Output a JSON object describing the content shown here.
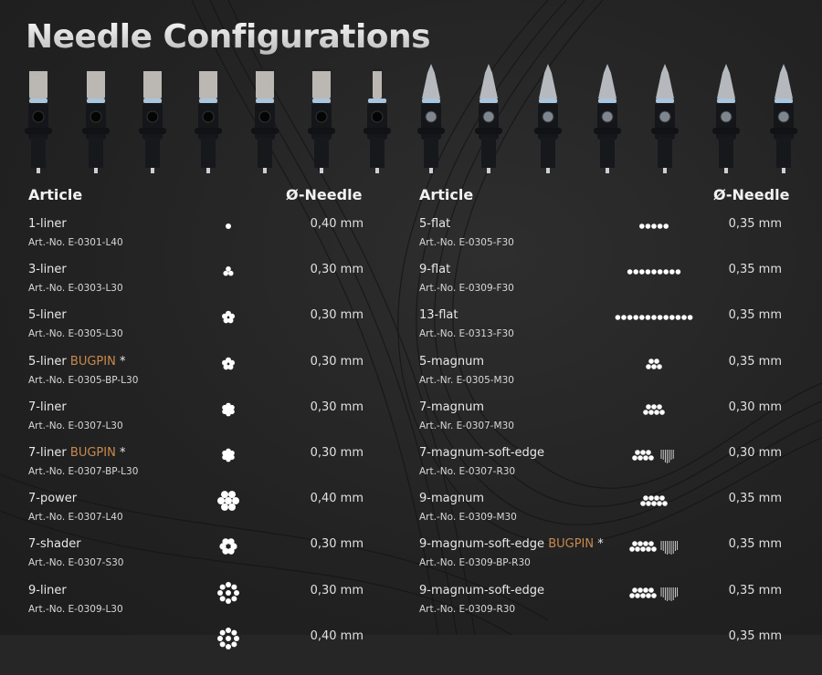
{
  "title": "Needle Configurations",
  "colors": {
    "accent_bugpin": "#c98a4e",
    "background": "#262626",
    "text": "#e8e8e8"
  },
  "cartridges": [
    "round-cartridge",
    "round-cartridge",
    "round-cartridge",
    "round-cartridge",
    "round-cartridge",
    "round-cartridge",
    "round-cartridge",
    "flat-cartridge",
    "flat-cartridge",
    "flat-cartridge",
    "flat-cartridge",
    "flat-cartridge",
    "flat-cartridge",
    "flat-cartridge"
  ],
  "left": {
    "header_article": "Article",
    "header_needle": "Ø-Needle",
    "rows": [
      {
        "name": "1-liner",
        "bugpin": "",
        "star": "",
        "art": "Art.-No. E-0301-L40",
        "mm": "0,40 mm",
        "icon": "liner-1"
      },
      {
        "name": "3-liner",
        "bugpin": "",
        "star": "",
        "art": "Art.-No. E-0303-L30",
        "mm": "0,30 mm",
        "icon": "liner-3"
      },
      {
        "name": "5-liner",
        "bugpin": "",
        "star": "",
        "art": "Art.-No. E-0305-L30",
        "mm": "0,30 mm",
        "icon": "liner-5"
      },
      {
        "name": "5-liner",
        "bugpin": "BUGPIN",
        "star": "*",
        "art": "Art.-No. E-0305-BP-L30",
        "mm": "0,30 mm",
        "icon": "liner-5"
      },
      {
        "name": "7-liner",
        "bugpin": "",
        "star": "",
        "art": "Art.-No. E-0307-L30",
        "mm": "0,30 mm",
        "icon": "liner-7"
      },
      {
        "name": "7-liner",
        "bugpin": "BUGPIN",
        "star": "*",
        "art": "Art.-No. E-0307-BP-L30",
        "mm": "0,30 mm",
        "icon": "liner-7"
      },
      {
        "name": "7-power",
        "bugpin": "",
        "star": "",
        "art": "Art.-No. E-0307-L40",
        "mm": "0,40 mm",
        "icon": "power-7"
      },
      {
        "name": "7-shader",
        "bugpin": "",
        "star": "",
        "art": "Art.-No. E-0307-S30",
        "mm": "0,30 mm",
        "icon": "shader-7"
      },
      {
        "name": "9-liner",
        "bugpin": "",
        "star": "",
        "art": "Art.-No. E-0309-L30",
        "mm": "0,30 mm",
        "icon": "liner-9"
      },
      {
        "name": "",
        "bugpin": "",
        "star": "",
        "art": "",
        "mm": "0,40 mm",
        "icon": "liner-9"
      }
    ]
  },
  "right": {
    "header_article": "Article",
    "header_needle": "Ø-Needle",
    "rows": [
      {
        "name": "5-flat",
        "bugpin": "",
        "star": "",
        "art": "Art.-No. E-0305-F30",
        "mm": "0,35 mm",
        "icon": "flat-5"
      },
      {
        "name": "9-flat",
        "bugpin": "",
        "star": "",
        "art": "Art.-No. E-0309-F30",
        "mm": "0,35 mm",
        "icon": "flat-9"
      },
      {
        "name": "13-flat",
        "bugpin": "",
        "star": "",
        "art": "Art.-No. E-0313-F30",
        "mm": "0,35 mm",
        "icon": "flat-13"
      },
      {
        "name": "5-magnum",
        "bugpin": "",
        "star": "",
        "art": "Art.-Nr. E-0305-M30",
        "mm": "0,35 mm",
        "icon": "magnum-5"
      },
      {
        "name": "7-magnum",
        "bugpin": "",
        "star": "",
        "art": "Art.-Nr. E-0307-M30",
        "mm": "0,30 mm",
        "icon": "magnum-7"
      },
      {
        "name": "7-magnum-soft-edge",
        "bugpin": "",
        "star": "",
        "art": "Art.-No. E-0307-R30",
        "mm": "0,30 mm",
        "icon": "softedge-7"
      },
      {
        "name": "9-magnum",
        "bugpin": "",
        "star": "",
        "art": "Art.-No. E-0309-M30",
        "mm": "0,35 mm",
        "icon": "magnum-9"
      },
      {
        "name": "9-magnum-soft-edge",
        "bugpin": "BUGPIN",
        "star": "*",
        "art": "Art.-No. E-0309-BP-R30",
        "mm": "0,35 mm",
        "icon": "softedge-9"
      },
      {
        "name": "9-magnum-soft-edge",
        "bugpin": "",
        "star": "",
        "art": "Art.-No. E-0309-R30",
        "mm": "0,35 mm",
        "icon": "softedge-9"
      },
      {
        "name": "",
        "bugpin": "",
        "star": "",
        "art": "",
        "mm": "0,35 mm",
        "icon": ""
      }
    ]
  }
}
